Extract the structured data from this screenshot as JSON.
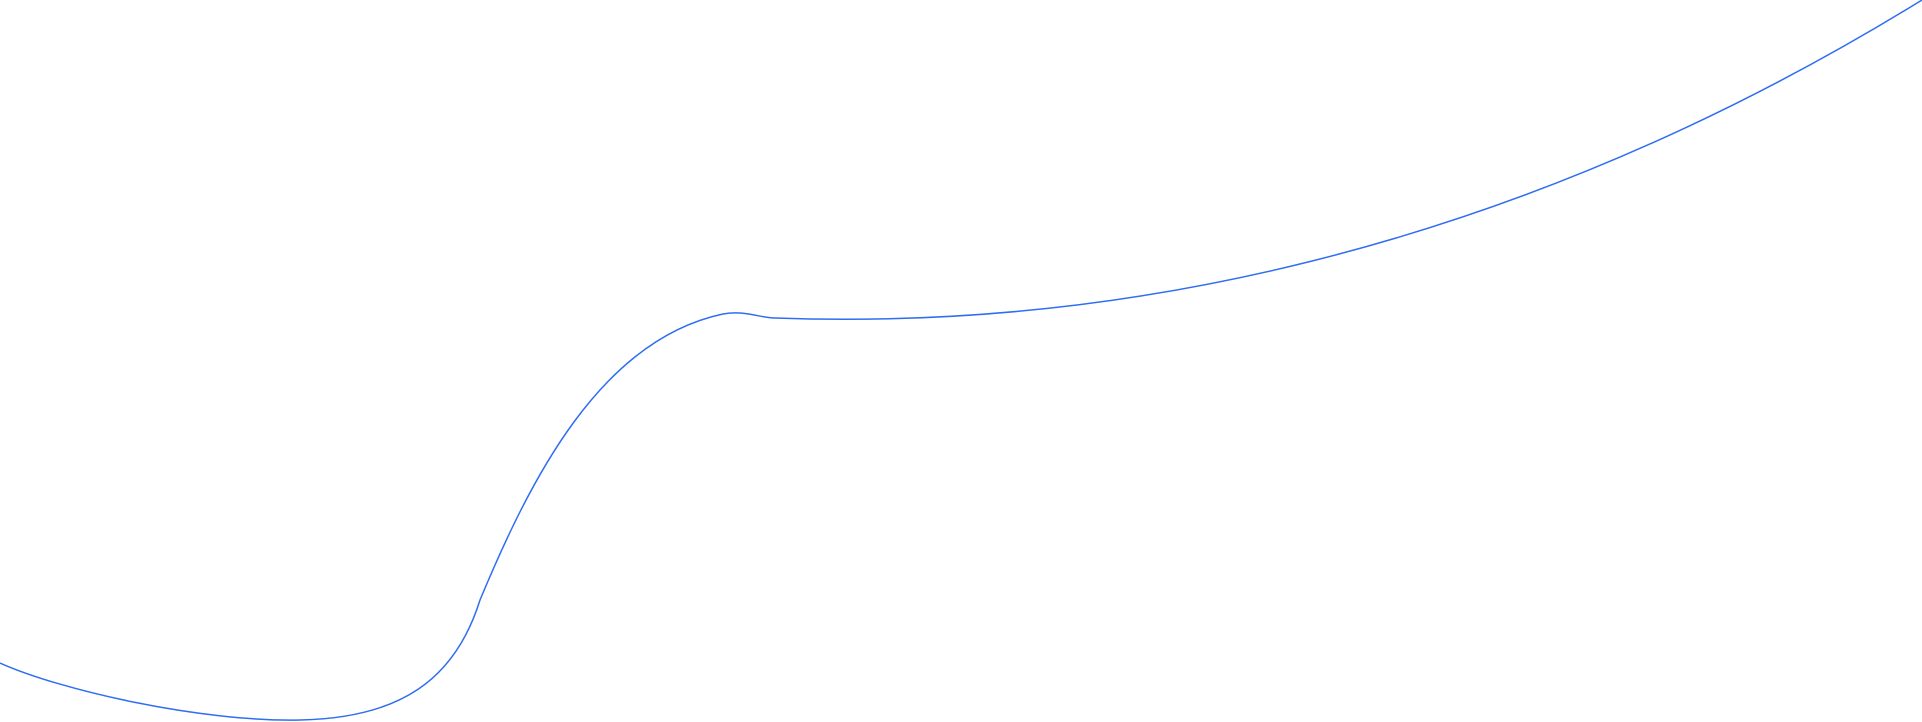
{
  "decoration": {
    "shape": "wave-curve",
    "stroke_color": "#2f6ef2",
    "background_color": "#ffffff"
  }
}
